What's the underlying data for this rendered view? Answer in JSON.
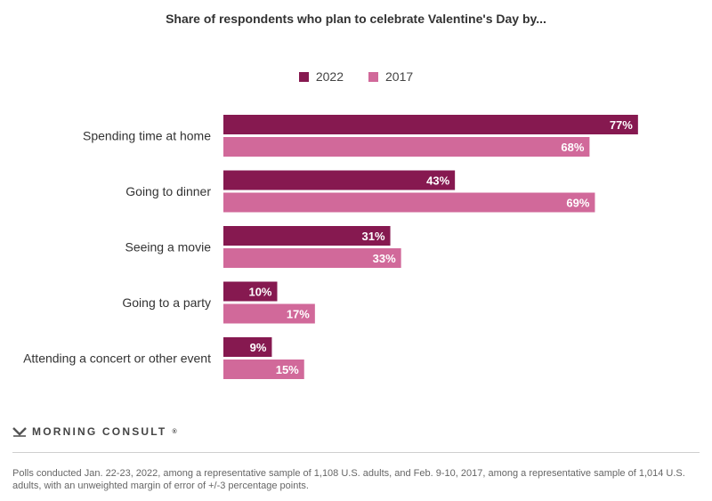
{
  "title": "Share of respondents who plan to celebrate Valentine's Day by...",
  "legend": [
    {
      "label": "2022",
      "color": "#861950"
    },
    {
      "label": "2017",
      "color": "#d1699a"
    }
  ],
  "chart_data": {
    "type": "bar",
    "orientation": "horizontal",
    "categories": [
      "Spending time at home",
      "Going to dinner",
      "Seeing a movie",
      "Going to a party",
      "Attending a concert or other event"
    ],
    "series": [
      {
        "name": "2022",
        "color": "#861950",
        "values": [
          77,
          43,
          31,
          10,
          9
        ]
      },
      {
        "name": "2017",
        "color": "#d1699a",
        "values": [
          68,
          69,
          33,
          17,
          15
        ]
      }
    ],
    "value_suffix": "%",
    "xlim": [
      0,
      100
    ],
    "grid": false,
    "legend_position": "top-center",
    "data_labels": true
  },
  "brand": {
    "name": "MORNING CONSULT",
    "tm": "®"
  },
  "footnote": "Polls conducted Jan. 22-23, 2022, among a representative sample of 1,108 U.S. adults, and Feb. 9-10, 2017, among a representative sample of 1,014 U.S. adults, with an unweighted margin of error of +/-3 percentage points."
}
